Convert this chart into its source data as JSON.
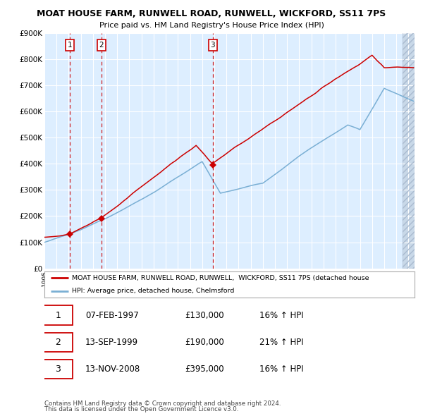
{
  "title": "MOAT HOUSE FARM, RUNWELL ROAD, RUNWELL, WICKFORD, SS11 7PS",
  "subtitle": "Price paid vs. HM Land Registry's House Price Index (HPI)",
  "ylim": [
    0,
    900000
  ],
  "yticks": [
    0,
    100000,
    200000,
    300000,
    400000,
    500000,
    600000,
    700000,
    800000,
    900000
  ],
  "ytick_labels": [
    "£0",
    "£100K",
    "£200K",
    "£300K",
    "£400K",
    "£500K",
    "£600K",
    "£700K",
    "£800K",
    "£900K"
  ],
  "year_start": 1995.0,
  "year_end": 2025.5,
  "sale_dates": [
    1997.1,
    1999.7,
    2008.87
  ],
  "sale_prices": [
    130000,
    190000,
    395000
  ],
  "sale_labels": [
    "1",
    "2",
    "3"
  ],
  "red_line_color": "#cc0000",
  "blue_line_color": "#7aafd4",
  "dashed_line_color": "#cc0000",
  "bg_color": "#ddeeff",
  "grid_color": "#ffffff",
  "legend_entries": [
    "MOAT HOUSE FARM, RUNWELL ROAD, RUNWELL,  WICKFORD, SS11 7PS (detached house",
    "HPI: Average price, detached house, Chelmsford"
  ],
  "table_rows": [
    [
      "1",
      "07-FEB-1997",
      "£130,000",
      "16% ↑ HPI"
    ],
    [
      "2",
      "13-SEP-1999",
      "£190,000",
      "21% ↑ HPI"
    ],
    [
      "3",
      "13-NOV-2008",
      "£395,000",
      "16% ↑ HPI"
    ]
  ],
  "footnote1": "Contains HM Land Registry data © Crown copyright and database right 2024.",
  "footnote2": "This data is licensed under the Open Government Licence v3.0."
}
